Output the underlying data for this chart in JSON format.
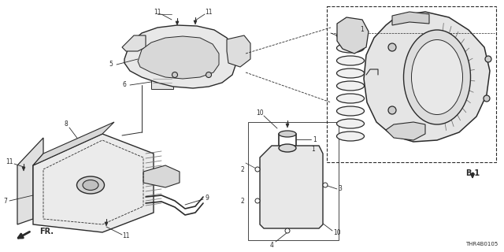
{
  "bg_color": "#ffffff",
  "dc": "#2a2a2a",
  "lc": "#777777",
  "gc": "#aaaaaa",
  "code": "THR4B0105",
  "figsize": [
    6.4,
    3.2
  ],
  "dpi": 100
}
